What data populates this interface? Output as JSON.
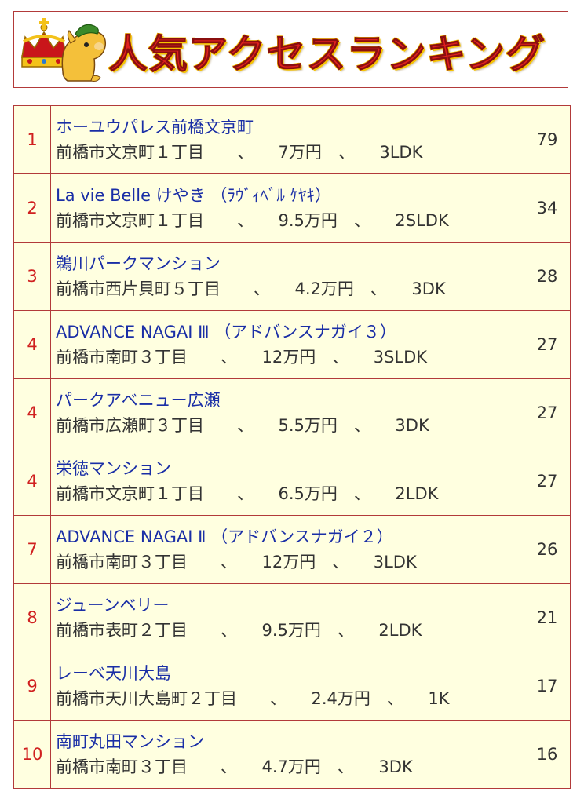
{
  "header": {
    "title": "人気アクセスランキング"
  },
  "colors": {
    "border": "#b23a3a",
    "row_background": "#ffffe0",
    "rank_text": "#d02020",
    "name_link": "#1a2ea6",
    "title_red": "#e0201e",
    "title_outline": "#f7c400"
  },
  "ranking": [
    {
      "rank": "1",
      "name": "ホーユウパレス前橋文京町",
      "address": "前橋市文京町１丁目",
      "rent": "7万円",
      "layout": "3LDK",
      "count": "79"
    },
    {
      "rank": "2",
      "name": "La vie Belle けやき （ﾗｳﾞｨﾍﾞﾙ ｹﾔｷ）",
      "address": "前橋市文京町１丁目",
      "rent": "9.5万円",
      "layout": "2SLDK",
      "count": "34"
    },
    {
      "rank": "3",
      "name": "鵜川パークマンション",
      "address": "前橋市西片貝町５丁目",
      "rent": "4.2万円",
      "layout": "3DK",
      "count": "28"
    },
    {
      "rank": "4",
      "name": "ADVANCE NAGAI Ⅲ （アドバンスナガイ３）",
      "address": "前橋市南町３丁目",
      "rent": "12万円",
      "layout": "3SLDK",
      "count": "27"
    },
    {
      "rank": "4",
      "name": "パークアベニュー広瀬",
      "address": "前橋市広瀬町３丁目",
      "rent": "5.5万円",
      "layout": "3DK",
      "count": "27"
    },
    {
      "rank": "4",
      "name": "栄徳マンション",
      "address": "前橋市文京町１丁目",
      "rent": "6.5万円",
      "layout": "2LDK",
      "count": "27"
    },
    {
      "rank": "7",
      "name": "ADVANCE NAGAI Ⅱ （アドバンスナガイ２）",
      "address": "前橋市南町３丁目",
      "rent": "12万円",
      "layout": "3LDK",
      "count": "26"
    },
    {
      "rank": "8",
      "name": "ジューンベリー",
      "address": "前橋市表町２丁目",
      "rent": "9.5万円",
      "layout": "2LDK",
      "count": "21"
    },
    {
      "rank": "9",
      "name": "レーベ天川大島",
      "address": "前橋市天川大島町２丁目",
      "rent": "2.4万円",
      "layout": "1K",
      "count": "17"
    },
    {
      "rank": "10",
      "name": "南町丸田マンション",
      "address": "前橋市南町３丁目",
      "rent": "4.7万円",
      "layout": "3DK",
      "count": "16"
    }
  ],
  "separator": "、"
}
